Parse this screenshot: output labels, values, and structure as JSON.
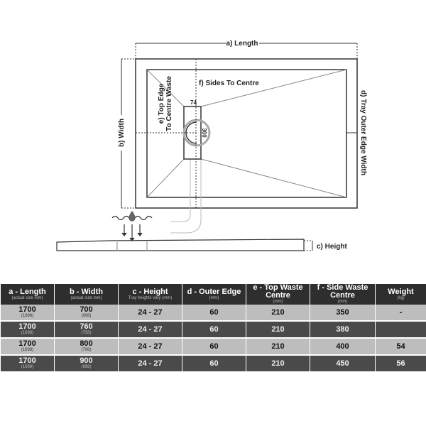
{
  "diagram": {
    "length_label": "a) Length",
    "width_label": "b) Width",
    "height_label": "c) Height",
    "outer_edge_label": "d) Tray Outer Edge Width",
    "top_edge_label_1": "e) Top Edge",
    "top_edge_label_2": "To Centre Waste",
    "sides_label": "f) Sides To Centre",
    "waste_width": "74",
    "waste_length": "300"
  },
  "table": {
    "headers": [
      {
        "title": "a - Length",
        "sub": "(actual size mm)"
      },
      {
        "title": "b - Width",
        "sub": "(actual size mm)"
      },
      {
        "title": "c - Height",
        "sub": "Tray heights vary (mm)"
      },
      {
        "title": "d - Outer Edge",
        "sub": "(mm)"
      },
      {
        "title": "e - Top Waste Centre",
        "sub": "(mm)"
      },
      {
        "title": "f - Side Waste Centre",
        "sub": "(mm)"
      },
      {
        "title": "Weight",
        "sub": "(kg)"
      }
    ],
    "rows": [
      {
        "length": "1700",
        "length_actual": "(1698)",
        "width": "700",
        "width_actual": "(698)",
        "height": "24 - 27",
        "outer": "60",
        "top": "210",
        "side": "350",
        "weight": "-"
      },
      {
        "length": "1700",
        "length_actual": "(1698)",
        "width": "760",
        "width_actual": "(758)",
        "height": "24 - 27",
        "outer": "60",
        "top": "210",
        "side": "380",
        "weight": ""
      },
      {
        "length": "1700",
        "length_actual": "(1698)",
        "width": "800",
        "width_actual": "(798)",
        "height": "24 - 27",
        "outer": "60",
        "top": "210",
        "side": "400",
        "weight": "54"
      },
      {
        "length": "1700",
        "length_actual": "(1698)",
        "width": "900",
        "width_actual": "(898)",
        "height": "24 - 27",
        "outer": "60",
        "top": "210",
        "side": "450",
        "weight": "56"
      }
    ]
  }
}
